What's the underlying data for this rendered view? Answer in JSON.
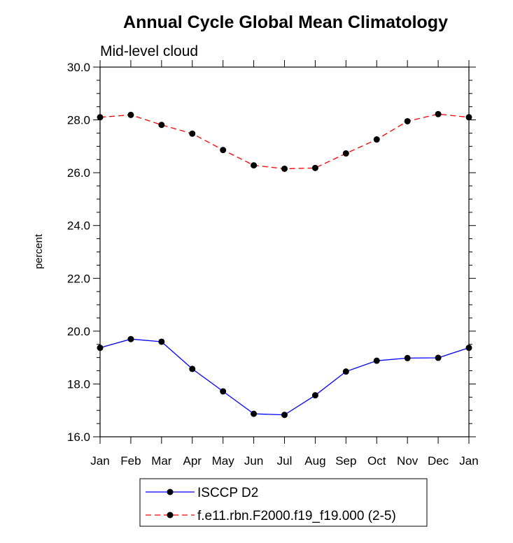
{
  "chart_data": {
    "type": "line",
    "title": "Annual Cycle Global Mean Climatology",
    "subtitle": "Mid-level cloud",
    "ylabel": "percent",
    "xlabel": "",
    "ylim": [
      16.0,
      30.0
    ],
    "y_ticks": [
      "16.0",
      "18.0",
      "20.0",
      "22.0",
      "24.0",
      "26.0",
      "28.0",
      "30.0"
    ],
    "categories": [
      "Jan",
      "Feb",
      "Mar",
      "Apr",
      "May",
      "Jun",
      "Jul",
      "Aug",
      "Sep",
      "Oct",
      "Nov",
      "Dec",
      "Jan"
    ],
    "grid": false,
    "legend_position": "bottom",
    "series": [
      {
        "name": "ISCCP D2",
        "color": "#0000ff",
        "dash": "solid",
        "values": [
          19.37,
          19.7,
          19.6,
          18.57,
          17.72,
          16.87,
          16.83,
          17.57,
          18.47,
          18.88,
          18.98,
          18.99,
          19.37
        ]
      },
      {
        "name": "f.e11.rbn.F2000.f19_f19.000 (2-5)",
        "color": "#ff0000",
        "dash": "dashed",
        "values": [
          28.1,
          28.19,
          27.81,
          27.48,
          26.86,
          26.28,
          26.15,
          26.18,
          26.73,
          27.26,
          27.95,
          28.22,
          28.1
        ]
      }
    ]
  }
}
